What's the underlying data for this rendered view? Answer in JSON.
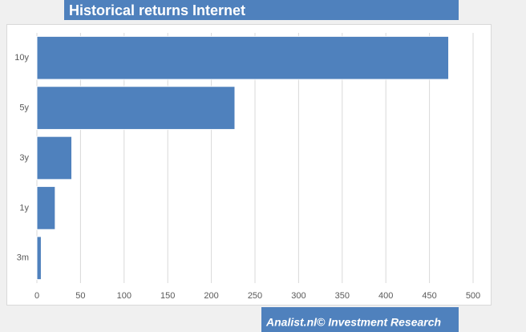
{
  "chart_data": {
    "type": "bar",
    "orientation": "horizontal",
    "title": "Historical returns Internet",
    "categories": [
      "10y",
      "5y",
      "3y",
      "1y",
      "3m"
    ],
    "values": [
      472,
      227,
      40,
      21,
      5
    ],
    "color": "#4f81bd",
    "xlim": [
      0,
      500
    ],
    "xticks": [
      0,
      50,
      100,
      150,
      200,
      250,
      300,
      350,
      400,
      450,
      500
    ],
    "grid": true
  },
  "footer": "Analist.nl© Investment Research"
}
